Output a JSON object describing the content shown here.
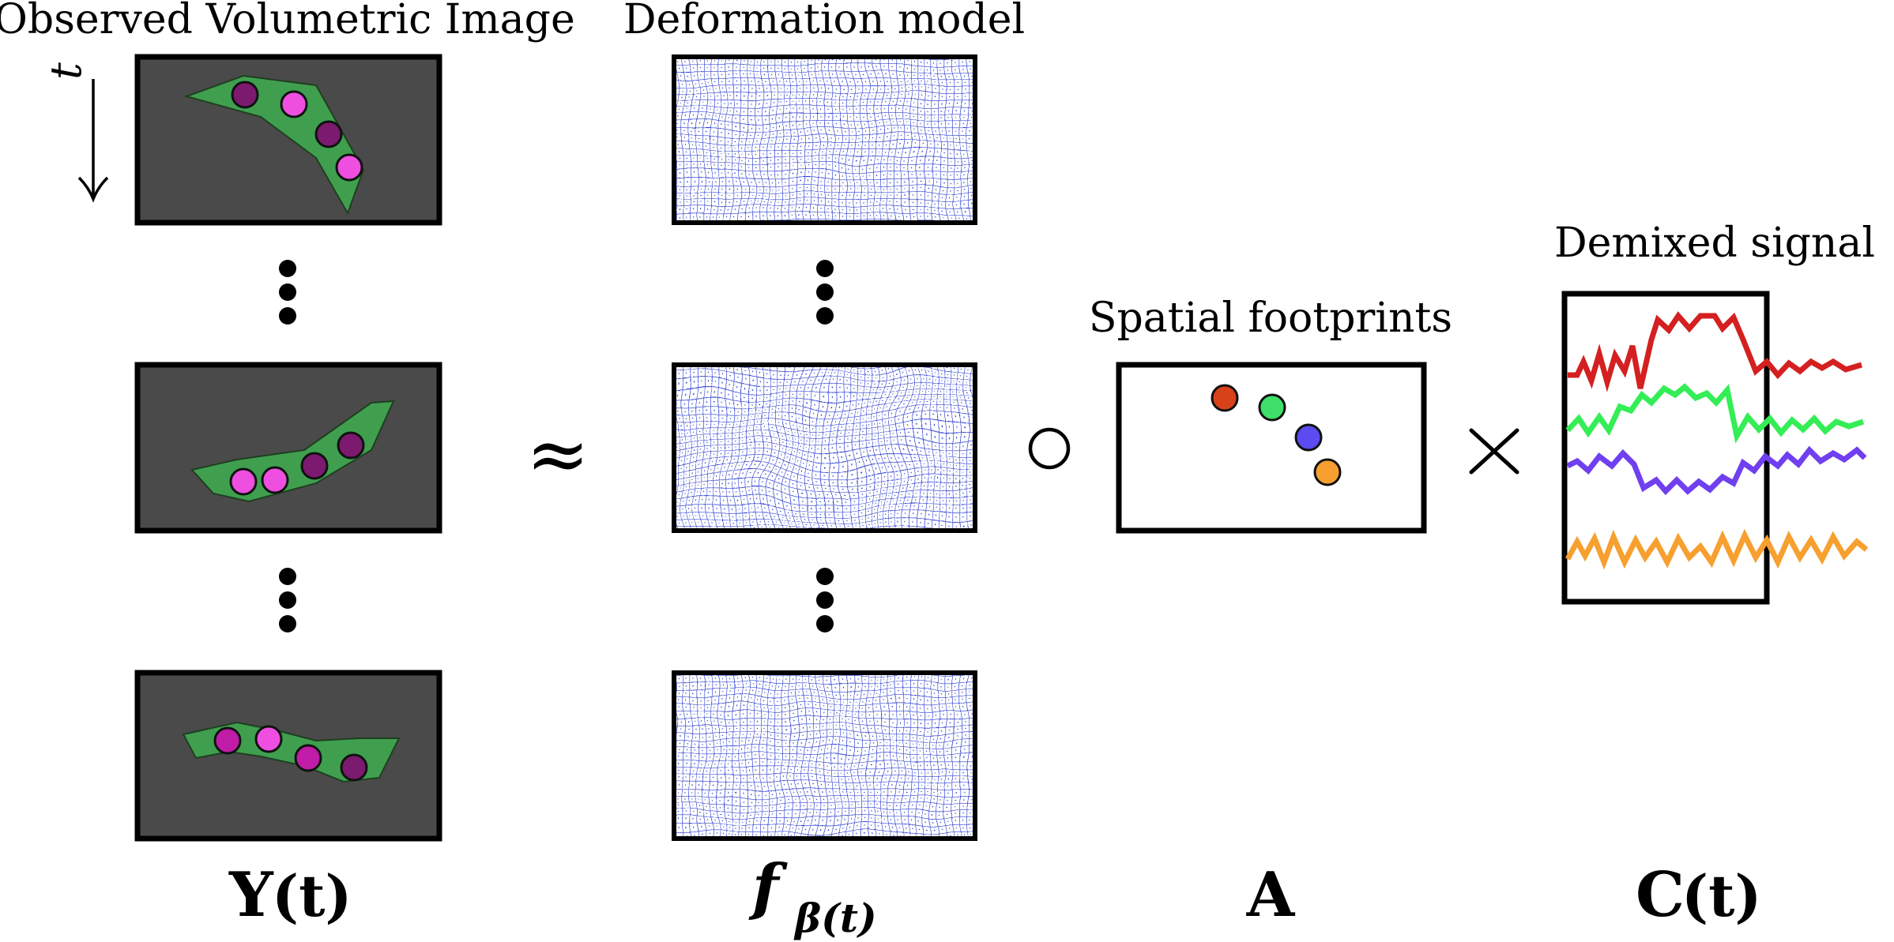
{
  "headings": {
    "observed": "Observed Volumetric Image",
    "deformation": "Deformation model",
    "spatial": "Spatial footprints",
    "demixed": "Demixed signal"
  },
  "time_axis_label": "t",
  "operators": {
    "approx": "≈",
    "compose": "○",
    "times": "×"
  },
  "labels": {
    "Y_main": "Y",
    "Y_arg": "(t)",
    "f_main": "f",
    "f_sub": "β(t)",
    "A": "A",
    "C_main": "C",
    "C_arg": "(t)"
  },
  "colors": {
    "panel_background": "#4a4a4a",
    "worm_body": "#3f9f4f",
    "neuron_dark": "#7b1a6e",
    "neuron_magenta": "#c01ca8",
    "neuron_pink": "#ee4fe0",
    "deformation_grid": "#2f3fd0",
    "trace_red": "#d42020",
    "trace_green": "#33ee55",
    "trace_purple": "#6f3ff0",
    "trace_orange": "#f7a030"
  },
  "frames_shown": 3,
  "footprint_neurons": [
    {
      "color": "#d8421a"
    },
    {
      "color": "#3ee06a"
    },
    {
      "color": "#5b4bf0"
    },
    {
      "color": "#f7a030"
    }
  ]
}
